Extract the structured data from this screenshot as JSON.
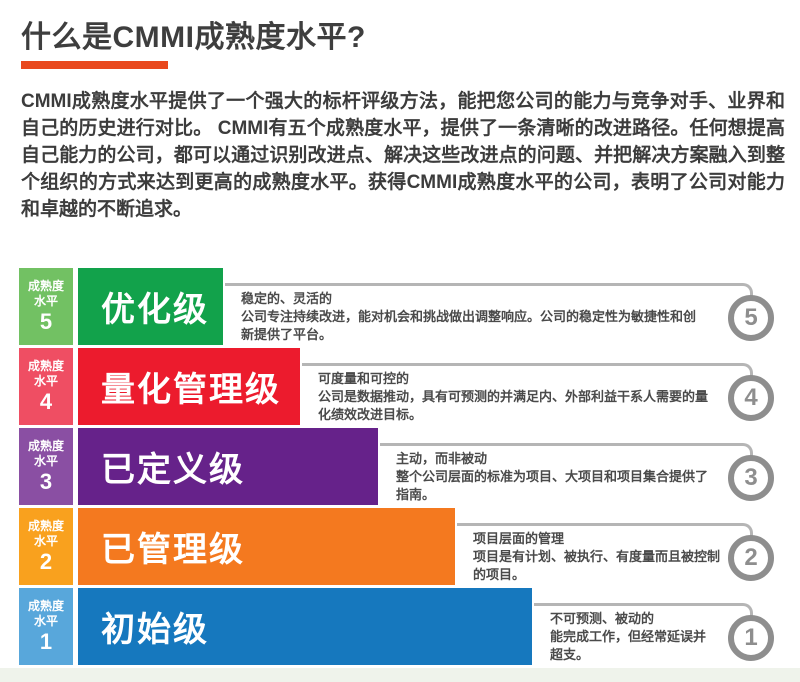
{
  "page": {
    "title": "什么是CMMI成熟度水平?",
    "accent_color": "#E9481D",
    "intro": "CMMI成熟度水平提供了一个强大的标杆评级方法，能把您公司的能力与竞争对手、业界和自己的历史进行对比。 CMMI有五个成熟度水平，提供了一条清晰的改进路径。任何想提高自己能力的公司，都可以通过识别改进点、解决这些改进点的问题、并把解决方案融入到整个组织的方式来达到更高的成熟度水平。获得CMMI成熟度水平的公司，表明了公司对能力和卓越的不断追求。"
  },
  "maturity_label": {
    "line1": "成熟度",
    "line2": "水平"
  },
  "theme": {
    "connector_color": "#B5B5B5",
    "badge_color": "#8E8E8E"
  },
  "levels": [
    {
      "number": "5",
      "name": "优化级",
      "headline": "稳定的、灵活的",
      "body": "公司专注持续改进，能对机会和挑战做出调整响应。公司的稳定性为敏捷性和创新提供了平台。",
      "label_color": "#72C163",
      "bar_color": "#12A24B"
    },
    {
      "number": "4",
      "name": "量化管理级",
      "headline": "可度量和可控的",
      "body": "公司是数据推动，具有可预测的并满足内、外部利益干系人需要的量化绩效改进目标。",
      "label_color": "#EF4E63",
      "bar_color": "#EC1B2D"
    },
    {
      "number": "3",
      "name": "已定义级",
      "headline": "主动，而非被动",
      "body": "整个公司层面的标准为项目、大项目和项目集合提供了指南。",
      "label_color": "#8A4FA3",
      "bar_color": "#66228A"
    },
    {
      "number": "2",
      "name": "已管理级",
      "headline": "项目层面的管理",
      "body": "项目是有计划、被执行、有度量而且被控制的项目。",
      "label_color": "#F9A11E",
      "bar_color": "#F4791F"
    },
    {
      "number": "1",
      "name": "初始级",
      "headline": "不可预测、被动的",
      "body": "能完成工作，但经常延误并超支。",
      "label_color": "#58A7DB",
      "bar_color": "#1678BE"
    }
  ]
}
